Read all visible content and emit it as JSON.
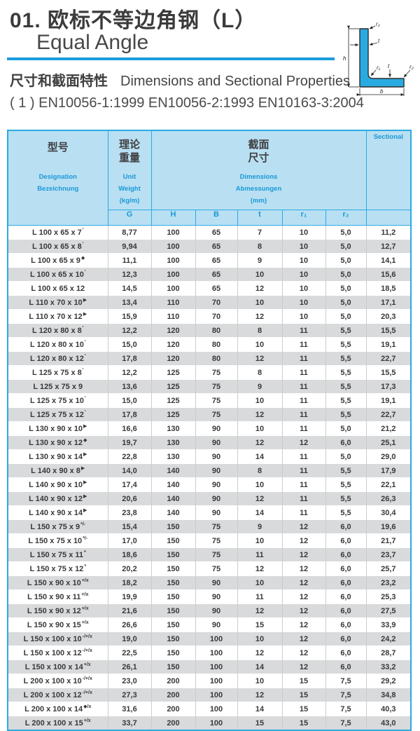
{
  "page": {
    "title_zh": "01. 欧标不等边角钢（L）",
    "title_en": "Equal Angle",
    "subtitle_zh": "尺寸和截面特性",
    "subtitle_en": "Dimensions and Sectional Properties",
    "standards": "( 1 ) EN10056-1:1999  EN10056-2:1993  EN10163-3:2004"
  },
  "colors": {
    "accent_cyan": "#29abe2",
    "divider_blue": "#1b9cdd",
    "header_bg": "#b9dff2",
    "header_text_blue": "#1a99d7",
    "dark_text": "#3f3f41",
    "row_alt_gray": "#d9dadb"
  },
  "diagram": {
    "label_h": "h",
    "label_b": "b",
    "label_t_top": "t",
    "label_t_bottom": "t",
    "label_r1": "r₁",
    "label_r2_top": "r₂",
    "label_r2_right": "r₂"
  },
  "table": {
    "header": {
      "designation_zh": "型号",
      "designation_en": "Designation",
      "designation_de": "Bezeichnung",
      "weight_zh1": "理论",
      "weight_zh2": "重量",
      "weight_en1": "Unit",
      "weight_en2": "Weight",
      "weight_en3": "(kg/m)",
      "dims_zh1": "截面",
      "dims_zh2": "尺寸",
      "dims_en1": "Dimensions",
      "dims_en2": "Abmessungen",
      "dims_en3": "(mm)",
      "sectional": "Sectional",
      "sub": [
        "G",
        "H",
        "B",
        "t",
        "r₁",
        "r₂"
      ]
    },
    "rows": [
      {
        "designation": "L 100 x 65 x 7",
        "mark": "'",
        "g": "8,77",
        "h": "100",
        "b": "65",
        "t": "7",
        "r1": "10",
        "r2": "5,0",
        "a": "11,2"
      },
      {
        "designation": "L 100 x 65 x 8",
        "mark": "'",
        "g": "9,94",
        "h": "100",
        "b": "65",
        "t": "8",
        "r1": "10",
        "r2": "5,0",
        "a": "12,7"
      },
      {
        "designation": "L 100 x 65 x 9",
        "mark": "◆",
        "g": "11,1",
        "h": "100",
        "b": "65",
        "t": "9",
        "r1": "10",
        "r2": "5,0",
        "a": "14,1"
      },
      {
        "designation": "L 100 x 65 x 10",
        "mark": "'",
        "g": "12,3",
        "h": "100",
        "b": "65",
        "t": "10",
        "r1": "10",
        "r2": "5,0",
        "a": "15,6"
      },
      {
        "designation": "L 100 x 65 x 12",
        "mark": "",
        "g": "14,5",
        "h": "100",
        "b": "65",
        "t": "12",
        "r1": "10",
        "r2": "5,0",
        "a": "18,5"
      },
      {
        "designation": "L 110 x 70 x 10",
        "mark": "▶",
        "g": "13,4",
        "h": "110",
        "b": "70",
        "t": "10",
        "r1": "10",
        "r2": "5,0",
        "a": "17,1"
      },
      {
        "designation": "L 110 x 70 x 12",
        "mark": "▶",
        "g": "15,9",
        "h": "110",
        "b": "70",
        "t": "12",
        "r1": "10",
        "r2": "5,0",
        "a": "20,3"
      },
      {
        "designation": "L 120 x 80 x 8",
        "mark": "'",
        "g": "12,2",
        "h": "120",
        "b": "80",
        "t": "8",
        "r1": "11",
        "r2": "5,5",
        "a": "15,5"
      },
      {
        "designation": "L 120 x 80 x 10",
        "mark": "'",
        "g": "15,0",
        "h": "120",
        "b": "80",
        "t": "10",
        "r1": "11",
        "r2": "5,5",
        "a": "19,1"
      },
      {
        "designation": "L 120 x 80 x 12",
        "mark": "'",
        "g": "17,8",
        "h": "120",
        "b": "80",
        "t": "12",
        "r1": "11",
        "r2": "5,5",
        "a": "22,7"
      },
      {
        "designation": "L 125 x 75 x 8",
        "mark": "'",
        "g": "12,2",
        "h": "125",
        "b": "75",
        "t": "8",
        "r1": "11",
        "r2": "5,5",
        "a": "15,5"
      },
      {
        "designation": "L 125 x 75 x 9",
        "mark": "",
        "g": "13,6",
        "h": "125",
        "b": "75",
        "t": "9",
        "r1": "11",
        "r2": "5,5",
        "a": "17,3"
      },
      {
        "designation": "L 125 x 75 x 10",
        "mark": "'",
        "g": "15,0",
        "h": "125",
        "b": "75",
        "t": "10",
        "r1": "11",
        "r2": "5,5",
        "a": "19,1"
      },
      {
        "designation": "L 125 x 75 x 12",
        "mark": "'",
        "g": "17,8",
        "h": "125",
        "b": "75",
        "t": "12",
        "r1": "11",
        "r2": "5,5",
        "a": "22,7"
      },
      {
        "designation": "L 130 x 90 x 10",
        "mark": "▶",
        "g": "16,6",
        "h": "130",
        "b": "90",
        "t": "10",
        "r1": "11",
        "r2": "5,0",
        "a": "21,2"
      },
      {
        "designation": "L 130 x 90 x 12",
        "mark": "◆",
        "g": "19,7",
        "h": "130",
        "b": "90",
        "t": "12",
        "r1": "12",
        "r2": "6,0",
        "a": "25,1"
      },
      {
        "designation": "L 130 x 90 x 14",
        "mark": "▶",
        "g": "22,8",
        "h": "130",
        "b": "90",
        "t": "14",
        "r1": "11",
        "r2": "5,0",
        "a": "29,0"
      },
      {
        "designation": "L 140 x 90 x 8",
        "mark": "▶",
        "g": "14,0",
        "h": "140",
        "b": "90",
        "t": "8",
        "r1": "11",
        "r2": "5,5",
        "a": "17,9"
      },
      {
        "designation": "L 140 x 90 x 10",
        "mark": "▶",
        "g": "17,4",
        "h": "140",
        "b": "90",
        "t": "10",
        "r1": "11",
        "r2": "5,5",
        "a": "22,1"
      },
      {
        "designation": "L 140 x 90 x 12",
        "mark": "▶",
        "g": "20,6",
        "h": "140",
        "b": "90",
        "t": "12",
        "r1": "11",
        "r2": "5,5",
        "a": "26,3"
      },
      {
        "designation": "L 140 x 90 x 14",
        "mark": "▶",
        "g": "23,8",
        "h": "140",
        "b": "90",
        "t": "14",
        "r1": "11",
        "r2": "5,5",
        "a": "30,4"
      },
      {
        "designation": "L 150 x 75 x 9",
        "mark": "*/-",
        "g": "15,4",
        "h": "150",
        "b": "75",
        "t": "9",
        "r1": "12",
        "r2": "6,0",
        "a": "19,6"
      },
      {
        "designation": "L 150 x 75 x 10",
        "mark": "*/-",
        "g": "17,0",
        "h": "150",
        "b": "75",
        "t": "10",
        "r1": "12",
        "r2": "6,0",
        "a": "21,7"
      },
      {
        "designation": "L 150 x 75 x 11",
        "mark": "*",
        "g": "18,6",
        "h": "150",
        "b": "75",
        "t": "11",
        "r1": "12",
        "r2": "6,0",
        "a": "23,7"
      },
      {
        "designation": "L 150 x 75 x 12",
        "mark": "*",
        "g": "20,2",
        "h": "150",
        "b": "75",
        "t": "12",
        "r1": "12",
        "r2": "6,0",
        "a": "25,7"
      },
      {
        "designation": "L 150 x 90 x 10",
        "mark": "+/x",
        "g": "18,2",
        "h": "150",
        "b": "90",
        "t": "10",
        "r1": "12",
        "r2": "6,0",
        "a": "23,2"
      },
      {
        "designation": "L 150 x 90 x 11",
        "mark": "+/x",
        "g": "19,9",
        "h": "150",
        "b": "90",
        "t": "11",
        "r1": "12",
        "r2": "6,0",
        "a": "25,3"
      },
      {
        "designation": "L 150 x 90 x 12",
        "mark": "+/x",
        "g": "21,6",
        "h": "150",
        "b": "90",
        "t": "12",
        "r1": "12",
        "r2": "6,0",
        "a": "27,5"
      },
      {
        "designation": "L 150 x 90 x 15",
        "mark": "+/x",
        "g": "26,6",
        "h": "150",
        "b": "90",
        "t": "15",
        "r1": "12",
        "r2": "6,0",
        "a": "33,9"
      },
      {
        "designation": "L 150 x 100 x 10",
        "mark": "-/+/x",
        "g": "19,0",
        "h": "150",
        "b": "100",
        "t": "10",
        "r1": "12",
        "r2": "6,0",
        "a": "24,2"
      },
      {
        "designation": "L 150 x 100 x 12",
        "mark": "-/+/x",
        "g": "22,5",
        "h": "150",
        "b": "100",
        "t": "12",
        "r1": "12",
        "r2": "6,0",
        "a": "28,7"
      },
      {
        "designation": "L 150 x 100 x 14",
        "mark": "+/x",
        "g": "26,1",
        "h": "150",
        "b": "100",
        "t": "14",
        "r1": "12",
        "r2": "6,0",
        "a": "33,2"
      },
      {
        "designation": "L 200 x 100 x 10",
        "mark": "-/+/x",
        "g": "23,0",
        "h": "200",
        "b": "100",
        "t": "10",
        "r1": "15",
        "r2": "7,5",
        "a": "29,2"
      },
      {
        "designation": "L 200 x 100 x 12",
        "mark": "-/+/x",
        "g": "27,3",
        "h": "200",
        "b": "100",
        "t": "12",
        "r1": "15",
        "r2": "7,5",
        "a": "34,8"
      },
      {
        "designation": "L 200 x 100 x 14",
        "mark": "◆/x",
        "g": "31,6",
        "h": "200",
        "b": "100",
        "t": "14",
        "r1": "15",
        "r2": "7,5",
        "a": "40,3"
      },
      {
        "designation": "L 200 x 100 x 15",
        "mark": "+/x",
        "g": "33,7",
        "h": "200",
        "b": "100",
        "t": "15",
        "r1": "15",
        "r2": "7,5",
        "a": "43,0"
      }
    ]
  }
}
